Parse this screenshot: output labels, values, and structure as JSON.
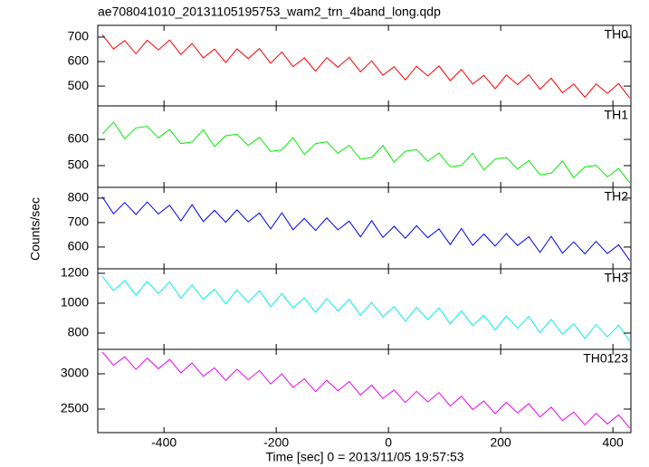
{
  "chart_data": {
    "type": "line",
    "title": "ae708041010_20131105195753_wam2_trn_4band_long.qdp",
    "xlabel": "Time [sec] 0 = 2013/11/05 19:57:53",
    "ylabel": "Counts/sec",
    "xlim": [
      -518,
      432
    ],
    "xticks": [
      -400,
      -200,
      0,
      200,
      400
    ],
    "x": [
      -510,
      -490,
      -470,
      -450,
      -430,
      -410,
      -390,
      -370,
      -350,
      -330,
      -310,
      -290,
      -270,
      -250,
      -230,
      -210,
      -190,
      -170,
      -150,
      -130,
      -110,
      -90,
      -70,
      -50,
      -30,
      -10,
      10,
      30,
      50,
      70,
      90,
      110,
      130,
      150,
      170,
      190,
      210,
      230,
      250,
      270,
      290,
      310,
      330,
      350,
      370,
      390,
      410,
      430
    ],
    "series": [
      {
        "name": "TH0",
        "color": "#ff0000",
        "ylim": [
          419,
          748
        ],
        "yticks": [
          500,
          600,
          700
        ],
        "values": [
          710,
          651,
          686,
          632,
          687,
          648,
          688,
          629,
          674,
          615,
          651,
          596,
          652,
          612,
          653,
          593,
          639,
          579,
          615,
          561,
          616,
          577,
          617,
          558,
          603,
          544,
          579,
          525,
          581,
          541,
          582,
          522,
          568,
          508,
          544,
          489,
          545,
          506,
          546,
          487,
          532,
          473,
          508,
          454,
          509,
          470,
          510,
          451
        ]
      },
      {
        "name": "TH1",
        "color": "#00ee00",
        "ylim": [
          417,
          728
        ],
        "yticks": [
          500,
          600
        ],
        "values": [
          620,
          666,
          603,
          644,
          650,
          606,
          638,
          584,
          590,
          637,
          573,
          614,
          620,
          577,
          608,
          554,
          560,
          607,
          543,
          584,
          591,
          547,
          578,
          524,
          531,
          577,
          513,
          555,
          561,
          517,
          548,
          495,
          501,
          547,
          483,
          525,
          531,
          487,
          519,
          465,
          471,
          517,
          454,
          495,
          501,
          457,
          489,
          435
        ]
      },
      {
        "name": "TH2",
        "color": "#0000ee",
        "ylim": [
          511,
          844
        ],
        "yticks": [
          600,
          700,
          800
        ],
        "values": [
          805,
          736,
          782,
          733,
          784,
          735,
          771,
          707,
          773,
          704,
          750,
          701,
          752,
          703,
          739,
          674,
          740,
          671,
          717,
          668,
          719,
          670,
          706,
          642,
          708,
          639,
          685,
          636,
          687,
          638,
          674,
          610,
          676,
          607,
          653,
          604,
          655,
          606,
          642,
          578,
          644,
          575,
          621,
          572,
          623,
          573,
          609,
          545
        ]
      },
      {
        "name": "TH3",
        "color": "#00eeee",
        "ylim": [
          691,
          1230
        ],
        "yticks": [
          800,
          1000,
          1200
        ],
        "values": [
          1180,
          1083,
          1151,
          1053,
          1146,
          1064,
          1142,
          1034,
          1122,
          1025,
          1093,
          995,
          1088,
          1006,
          1084,
          977,
          1064,
          967,
          1035,
          938,
          1030,
          948,
          1026,
          919,
          1006,
          909,
          977,
          880,
          972,
          890,
          968,
          861,
          948,
          851,
          919,
          822,
          915,
          832,
          910,
          803,
          891,
          793,
          861,
          764,
          857,
          774,
          852,
          745
        ]
      },
      {
        "name": "TH0123",
        "color": "#ee00ee",
        "ylim": [
          2167,
          3346
        ],
        "yticks": [
          2500,
          3000
        ],
        "values": [
          3310,
          3120,
          3241,
          3061,
          3222,
          3072,
          3203,
          3013,
          3153,
          2964,
          3084,
          2905,
          3065,
          2916,
          3046,
          2856,
          2997,
          2807,
          2928,
          2748,
          2909,
          2759,
          2890,
          2700,
          2840,
          2651,
          2771,
          2592,
          2752,
          2603,
          2733,
          2543,
          2684,
          2494,
          2615,
          2435,
          2596,
          2446,
          2577,
          2387,
          2527,
          2338,
          2458,
          2279,
          2439,
          2290,
          2420,
          2230
        ]
      }
    ]
  }
}
